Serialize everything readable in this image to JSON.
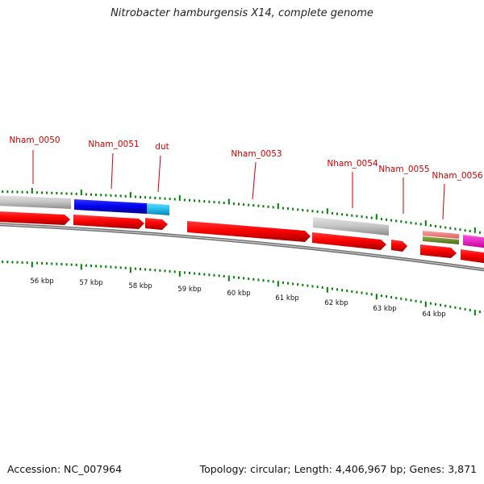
{
  "title": "Nitrobacter hamburgensis X14, complete genome",
  "footer": {
    "accession": "Accession: NC_007964",
    "summary": "Topology: circular; Length: 4,406,967 bp; Genes: 3,871"
  },
  "colors": {
    "gene_label": "#cc0000",
    "tick": "#008000",
    "forward_cds": "#ff0000",
    "track_gray": "#c8c8c8",
    "backbone": "#808080",
    "blue": "#0000ee",
    "cyan": "#22bbee",
    "salmon": "#f08080",
    "olive": "#6b8e23",
    "magenta": "#ff00cc"
  },
  "gene_labels": [
    {
      "id": "nham-0050",
      "text": "Nham_0050"
    },
    {
      "id": "nham-0051",
      "text": "Nham_0051"
    },
    {
      "id": "dut",
      "text": "dut"
    },
    {
      "id": "nham-0053",
      "text": "Nham_0053"
    },
    {
      "id": "nham-0054",
      "text": "Nham_0054"
    },
    {
      "id": "nham-0055",
      "text": "Nham_0055"
    },
    {
      "id": "nham-0056",
      "text": "Nham_0056"
    }
  ],
  "kbp_labels": [
    "56 kbp",
    "57 kbp",
    "58 kbp",
    "59 kbp",
    "60 kbp",
    "61 kbp",
    "62 kbp",
    "63 kbp",
    "64 kbp"
  ]
}
